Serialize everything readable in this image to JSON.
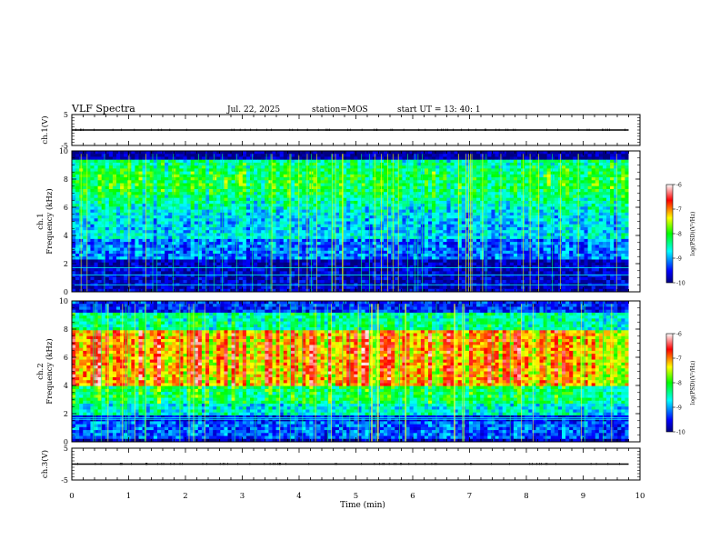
{
  "header": {
    "title": "VLF Spectra",
    "date": "Jul. 22, 2025",
    "station": "station=MOS",
    "start": "start UT =  13: 40: 1"
  },
  "chart_data": [
    {
      "type": "line",
      "panel": "ch1-voltage",
      "ylabel": "ch.1(V)",
      "ylim": [
        -5,
        5
      ],
      "yticks": [
        "5",
        "-5"
      ],
      "x": [
        0,
        9.8
      ],
      "values": [
        0,
        0
      ]
    },
    {
      "type": "heatmap",
      "panel": "ch1-spectrogram",
      "ylabel": "ch.1\nFrequency (kHz)",
      "ylim": [
        0,
        10
      ],
      "yticks": [
        "0",
        "2",
        "4",
        "6",
        "8",
        "10"
      ],
      "xlim": [
        0,
        10
      ],
      "data_end_min": 9.8,
      "colorbar": {
        "label": "log(PSD)(V²/Hz)",
        "range": [
          -10,
          -6
        ],
        "ticks": [
          "-6",
          "-7",
          "-8",
          "-9",
          "-10"
        ]
      }
    },
    {
      "type": "heatmap",
      "panel": "ch2-spectrogram",
      "ylabel": "ch.2\nFrequency (kHz)",
      "ylim": [
        0,
        10
      ],
      "yticks": [
        "0",
        "2",
        "4",
        "6",
        "8",
        "10"
      ],
      "xlim": [
        0,
        10
      ],
      "data_end_min": 9.8,
      "colorbar": {
        "label": "log(PSD)(V²/Hz)",
        "range": [
          -10,
          -6
        ],
        "ticks": [
          "-6",
          "-7",
          "-8",
          "-9",
          "-10"
        ]
      }
    },
    {
      "type": "line",
      "panel": "ch3-voltage",
      "ylabel": "ch.3(V)",
      "ylim": [
        -5,
        5
      ],
      "yticks": [
        "5",
        "-5"
      ],
      "x": [
        0,
        9.8
      ],
      "values": [
        0,
        0
      ]
    }
  ],
  "x_axis": {
    "xlabel": "Time (min)",
    "xlim": [
      0,
      10
    ],
    "ticks": [
      "0",
      "1",
      "2",
      "3",
      "4",
      "5",
      "6",
      "7",
      "8",
      "9",
      "10"
    ]
  },
  "colors": {
    "colormap": [
      "#000080",
      "#0000ff",
      "#00ffff",
      "#00ff00",
      "#ffff00",
      "#ff0000",
      "#ffffff"
    ]
  }
}
